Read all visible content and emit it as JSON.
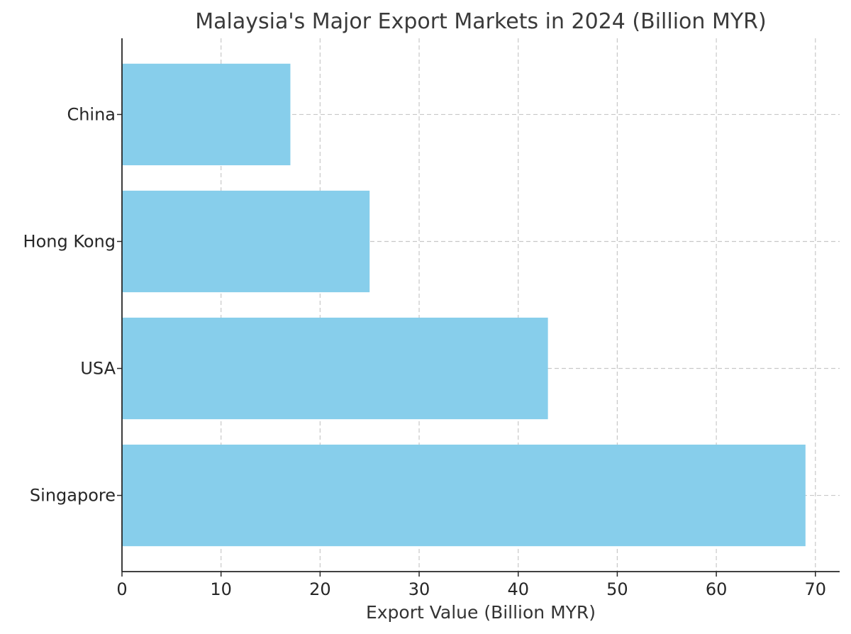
{
  "chart_data": {
    "type": "bar",
    "orientation": "horizontal",
    "title": "Malaysia's Major Export Markets in 2024 (Billion MYR)",
    "xlabel": "Export Value (Billion MYR)",
    "ylabel": "",
    "categories": [
      "China",
      "Hong Kong",
      "USA",
      "Singapore"
    ],
    "values": [
      17,
      25,
      43,
      69
    ],
    "xlim": [
      0,
      72.45
    ],
    "xticks": [
      0,
      10,
      20,
      30,
      40,
      50,
      60,
      70
    ],
    "grid": true,
    "bar_color": "#87CEEB"
  }
}
